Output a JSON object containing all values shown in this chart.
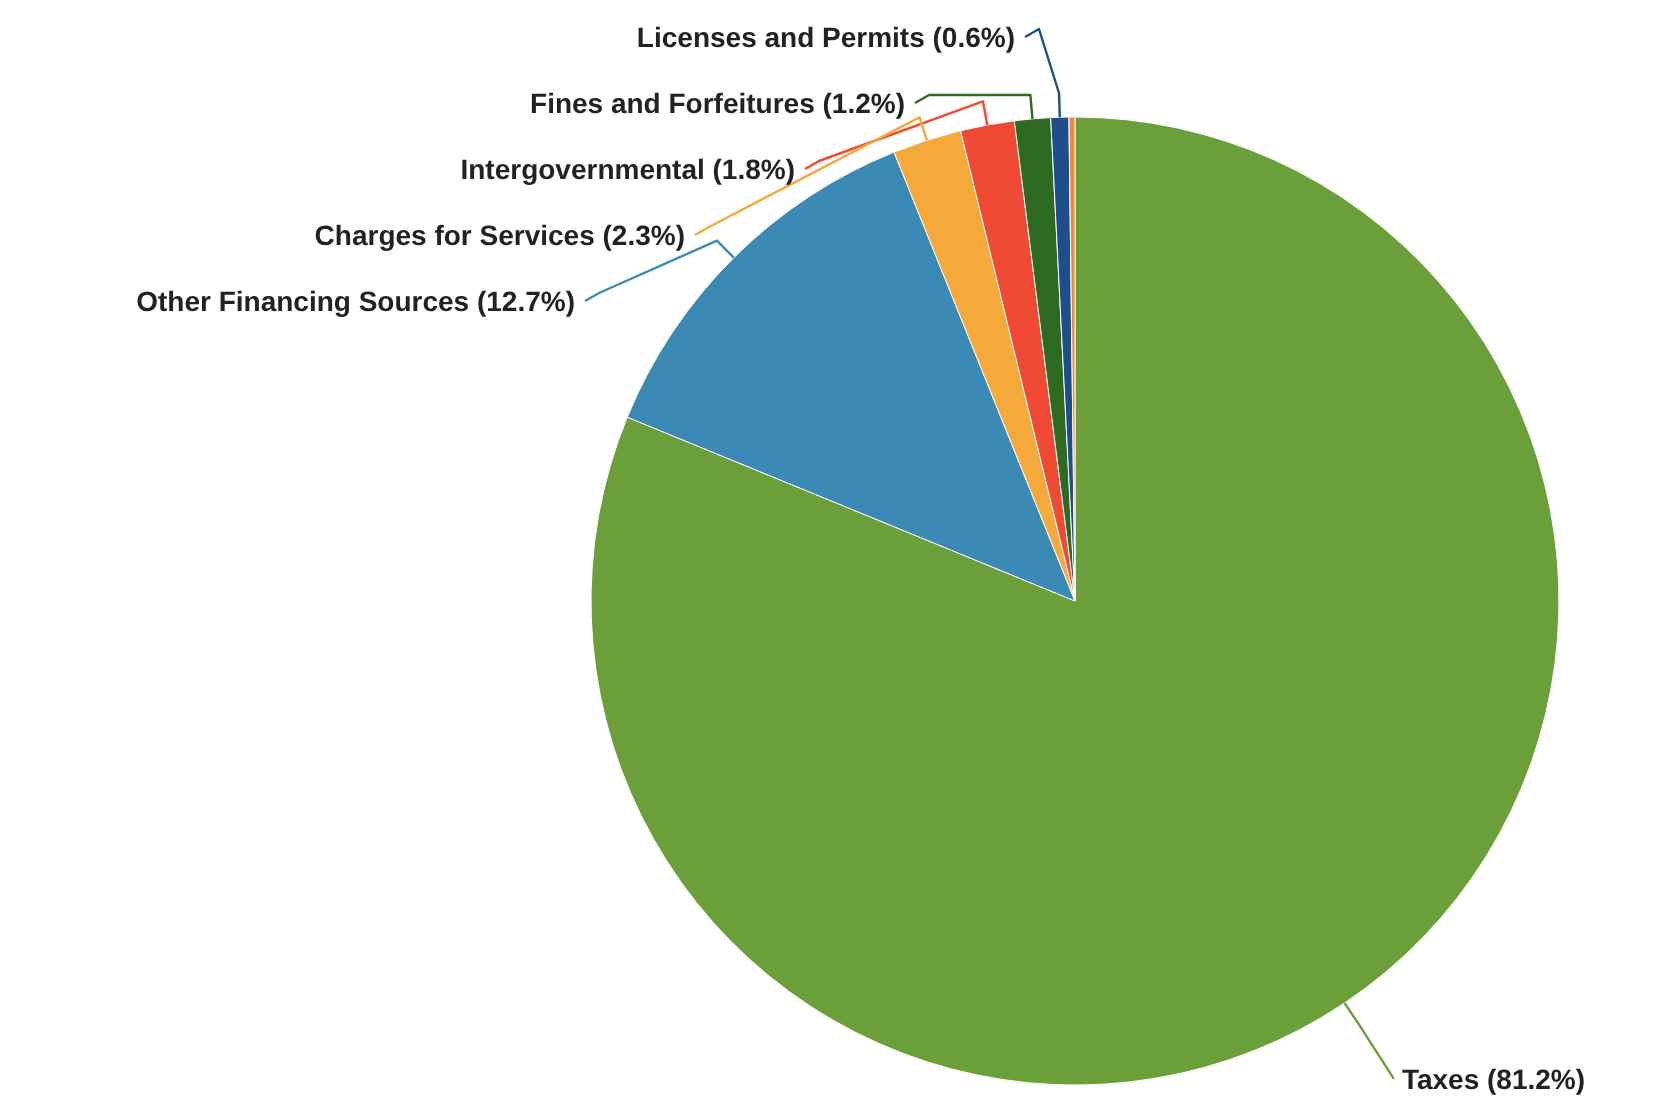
{
  "chart_data": {
    "type": "pie",
    "categories": [
      "Taxes (81.2%)",
      "Other Financing Sources (12.7%)",
      "Charges for Services (2.3%)",
      "Intergovernmental (1.8%)",
      "Fines and Forfeitures (1.2%)",
      "Licenses and Permits (0.6%)",
      null
    ],
    "values": [
      81.2,
      12.7,
      2.3,
      1.8,
      1.2,
      0.6,
      0.2
    ],
    "colors": [
      "#6a9f3a",
      "#3b89b5",
      "#f5a93a",
      "#f04a35",
      "#2e6a22",
      "#1f4e8c",
      "#f08a3a"
    ]
  }
}
